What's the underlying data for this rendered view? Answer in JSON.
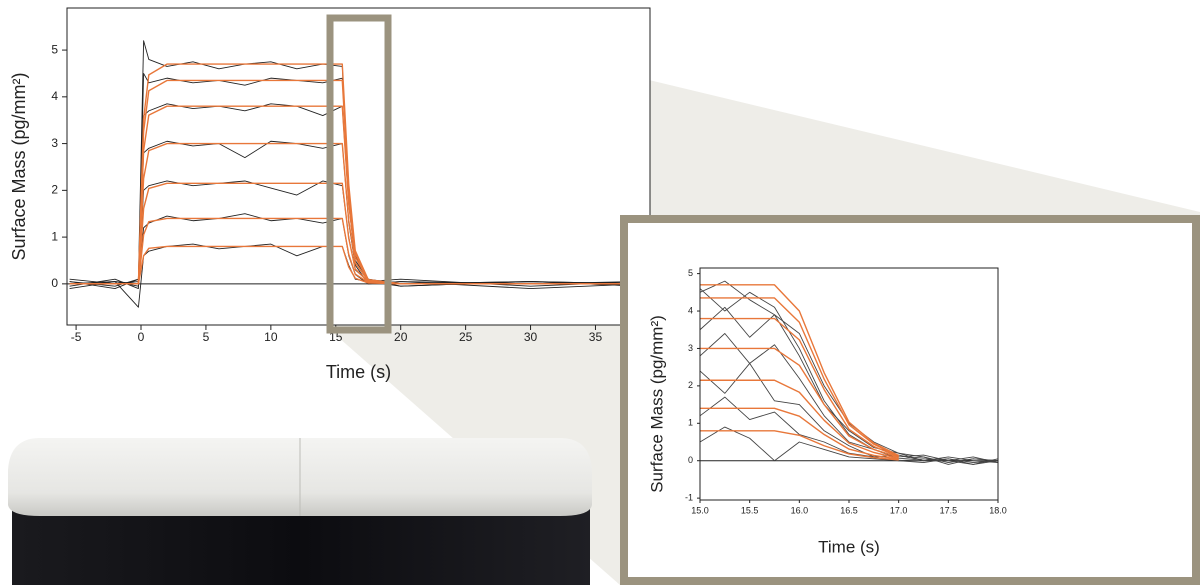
{
  "chart_data": [
    {
      "type": "line",
      "x_label": "Time (s)",
      "y_label": "Surface Mass (pg/mm²)",
      "xlim": [
        -5.7,
        39.2
      ],
      "ylim": [
        -0.88,
        5.9
      ],
      "xticks": [
        -5,
        0,
        5,
        10,
        15,
        20,
        25,
        30,
        35
      ],
      "yticks": [
        0,
        1,
        2,
        3,
        4,
        5
      ],
      "zero_line": true,
      "x": [
        -5.5,
        -2,
        -0.2,
        0.2,
        0.6,
        2,
        4,
        6,
        8,
        10,
        12,
        14,
        15.5,
        16,
        16.5,
        17.5,
        20,
        30,
        38.5
      ],
      "series": [
        {
          "color": "#222222",
          "values": [
            0.05,
            -0.1,
            0.1,
            5.2,
            4.8,
            4.65,
            4.75,
            4.6,
            4.7,
            4.75,
            4.6,
            4.7,
            4.65,
            2.0,
            0.6,
            0.1,
            -0.05,
            0.05,
            0.0
          ]
        },
        {
          "color": "#222222",
          "values": [
            -0.05,
            0.1,
            -0.1,
            4.5,
            4.3,
            4.4,
            4.3,
            4.35,
            4.25,
            4.4,
            4.35,
            4.3,
            4.4,
            1.9,
            0.7,
            0.05,
            0.1,
            -0.05,
            0.05
          ]
        },
        {
          "color": "#222222",
          "values": [
            0.1,
            0.0,
            0.05,
            3.6,
            3.7,
            3.85,
            3.75,
            3.8,
            3.7,
            3.85,
            3.8,
            3.6,
            3.8,
            1.7,
            0.5,
            0.1,
            0.0,
            0.05,
            -0.05
          ]
        },
        {
          "color": "#222222",
          "values": [
            0.0,
            0.05,
            -0.05,
            2.8,
            2.9,
            3.05,
            2.95,
            3.0,
            2.7,
            3.05,
            3.0,
            2.9,
            3.0,
            1.3,
            0.4,
            0.0,
            0.05,
            0.0,
            0.05
          ]
        },
        {
          "color": "#222222",
          "values": [
            -0.1,
            0.05,
            0.0,
            2.0,
            2.1,
            2.2,
            2.1,
            2.15,
            2.2,
            2.05,
            1.9,
            2.2,
            2.1,
            1.0,
            0.3,
            0.05,
            -0.05,
            0.05,
            0.0
          ]
        },
        {
          "color": "#222222",
          "values": [
            0.05,
            -0.05,
            0.1,
            1.2,
            1.3,
            1.45,
            1.35,
            1.4,
            1.5,
            1.35,
            1.4,
            1.3,
            1.4,
            0.6,
            0.2,
            0.0,
            0.05,
            -0.1,
            0.0
          ]
        },
        {
          "color": "#222222",
          "values": [
            0.0,
            0.05,
            -0.5,
            0.6,
            0.7,
            0.8,
            0.85,
            0.75,
            0.8,
            0.85,
            0.6,
            0.8,
            0.8,
            0.4,
            0.1,
            0.05,
            0.0,
            0.05,
            -0.05
          ]
        },
        {
          "color": "#e8773a",
          "values": [
            0,
            0,
            0,
            0.6,
            0.76,
            0.8,
            0.8,
            0.8,
            0.8,
            0.8,
            0.8,
            0.8,
            0.8,
            0.36,
            0.12,
            0.02,
            0,
            0,
            0
          ]
        },
        {
          "color": "#e8773a",
          "values": [
            0,
            0,
            0,
            1.05,
            1.33,
            1.4,
            1.4,
            1.4,
            1.4,
            1.4,
            1.4,
            1.4,
            1.4,
            0.63,
            0.21,
            0.03,
            0,
            0,
            0
          ]
        },
        {
          "color": "#e8773a",
          "values": [
            0,
            0,
            0,
            1.61,
            2.04,
            2.15,
            2.15,
            2.15,
            2.15,
            2.15,
            2.15,
            2.15,
            2.15,
            0.97,
            0.32,
            0.04,
            0,
            0,
            0
          ]
        },
        {
          "color": "#e8773a",
          "values": [
            0,
            0,
            0,
            2.25,
            2.85,
            3.0,
            3.0,
            3.0,
            3.0,
            3.0,
            3.0,
            3.0,
            3.0,
            1.35,
            0.45,
            0.06,
            0,
            0,
            0
          ]
        },
        {
          "color": "#e8773a",
          "values": [
            0,
            0,
            0,
            2.85,
            3.61,
            3.8,
            3.8,
            3.8,
            3.8,
            3.8,
            3.8,
            3.8,
            3.8,
            1.71,
            0.57,
            0.08,
            0,
            0,
            0
          ]
        },
        {
          "color": "#e8773a",
          "values": [
            0,
            0,
            0,
            3.26,
            4.13,
            4.35,
            4.35,
            4.35,
            4.35,
            4.35,
            4.35,
            4.35,
            4.35,
            1.96,
            0.65,
            0.09,
            0,
            0,
            0
          ]
        },
        {
          "color": "#e8773a",
          "values": [
            0,
            0,
            0,
            3.53,
            4.47,
            4.7,
            4.7,
            4.7,
            4.7,
            4.7,
            4.7,
            4.7,
            4.7,
            2.12,
            0.71,
            0.09,
            0,
            0,
            0
          ]
        }
      ]
    },
    {
      "type": "line",
      "x_label": "Time (s)",
      "y_label": "Surface Mass (pg/mm²)",
      "xlim": [
        15.0,
        18.0
      ],
      "ylim": [
        -1.05,
        5.15
      ],
      "xticks": [
        {
          "value": 15.0,
          "label": "15.0"
        },
        {
          "value": 15.5,
          "label": "15.5"
        },
        {
          "value": 16.0,
          "label": "16.0"
        },
        {
          "value": 16.5,
          "label": "16.5"
        },
        {
          "value": 17.0,
          "label": "17.0"
        },
        {
          "value": 17.5,
          "label": "17.5"
        },
        {
          "value": 18.0,
          "label": "18.0"
        }
      ],
      "yticks": [
        -1,
        0,
        1,
        2,
        3,
        4,
        5
      ],
      "zero_line": true,
      "x": [
        15.0,
        15.25,
        15.5,
        15.75,
        16.0,
        16.25,
        16.5,
        16.75,
        17.0,
        17.25,
        17.5,
        17.75,
        18.0
      ],
      "series": [
        {
          "color": "#444444",
          "values": [
            4.5,
            4.8,
            4.3,
            3.9,
            3.4,
            2.0,
            1.0,
            0.5,
            0.2,
            0.1,
            -0.05,
            0.05,
            0.0
          ]
        },
        {
          "color": "#444444",
          "values": [
            4.6,
            4.0,
            4.5,
            4.1,
            3.0,
            1.6,
            0.7,
            0.3,
            0.1,
            0.15,
            0.0,
            -0.1,
            0.05
          ]
        },
        {
          "color": "#444444",
          "values": [
            3.5,
            4.1,
            3.3,
            3.9,
            2.8,
            1.5,
            0.8,
            0.35,
            0.2,
            0.0,
            0.1,
            0.0,
            -0.05
          ]
        },
        {
          "color": "#444444",
          "values": [
            2.8,
            3.4,
            2.6,
            3.1,
            2.2,
            1.2,
            0.5,
            0.3,
            0.05,
            0.1,
            -0.1,
            0.05,
            0.0
          ]
        },
        {
          "color": "#444444",
          "values": [
            2.4,
            1.8,
            2.6,
            1.6,
            1.5,
            0.8,
            0.4,
            0.1,
            0.15,
            0.0,
            0.05,
            -0.05,
            0.0
          ]
        },
        {
          "color": "#444444",
          "values": [
            1.2,
            1.7,
            1.1,
            1.3,
            0.7,
            0.5,
            0.2,
            0.1,
            0.0,
            0.05,
            0.0,
            0.1,
            -0.05
          ]
        },
        {
          "color": "#444444",
          "values": [
            0.5,
            0.9,
            0.6,
            0.0,
            0.5,
            0.3,
            0.1,
            0.05,
            0.0,
            -0.05,
            0.05,
            -0.1,
            0.0
          ]
        },
        {
          "color": "#e8773a",
          "values": [
            0.8,
            0.8,
            0.8,
            0.8,
            0.68,
            0.4,
            0.18,
            0.08,
            0.02,
            null,
            null,
            null,
            null
          ]
        },
        {
          "color": "#e8773a",
          "values": [
            1.4,
            1.4,
            1.4,
            1.4,
            1.19,
            0.7,
            0.31,
            0.14,
            0.04,
            null,
            null,
            null,
            null
          ]
        },
        {
          "color": "#e8773a",
          "values": [
            2.15,
            2.15,
            2.15,
            2.15,
            1.83,
            1.08,
            0.47,
            0.22,
            0.06,
            null,
            null,
            null,
            null
          ]
        },
        {
          "color": "#e8773a",
          "values": [
            3.0,
            3.0,
            3.0,
            3.0,
            2.55,
            1.5,
            0.66,
            0.3,
            0.09,
            null,
            null,
            null,
            null
          ]
        },
        {
          "color": "#e8773a",
          "values": [
            3.8,
            3.8,
            3.8,
            3.8,
            3.23,
            1.9,
            0.84,
            0.38,
            0.11,
            null,
            null,
            null,
            null
          ]
        },
        {
          "color": "#e8773a",
          "values": [
            4.35,
            4.35,
            4.35,
            4.35,
            3.7,
            2.18,
            0.96,
            0.44,
            0.13,
            null,
            null,
            null,
            null
          ]
        },
        {
          "color": "#e8773a",
          "values": [
            4.7,
            4.7,
            4.7,
            4.7,
            4.0,
            2.35,
            1.03,
            0.47,
            0.14,
            null,
            null,
            null,
            null
          ]
        }
      ]
    }
  ]
}
